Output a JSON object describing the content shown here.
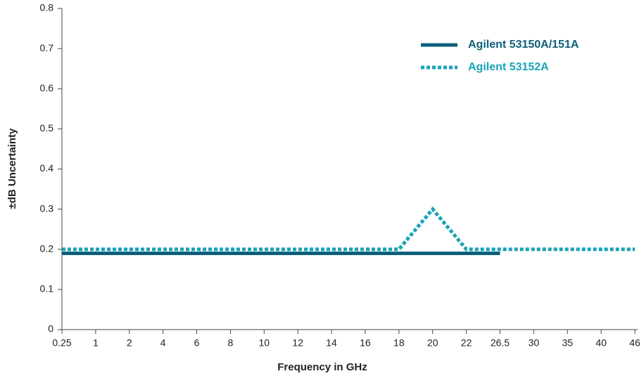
{
  "chart_data": {
    "type": "line",
    "x_label": "Frequency in GHz",
    "y_label": "±dB Uncertainty",
    "categories": [
      "0.25",
      "1",
      "2",
      "4",
      "6",
      "8",
      "10",
      "12",
      "14",
      "16",
      "18",
      "20",
      "22",
      "26.5",
      "30",
      "35",
      "40",
      "46"
    ],
    "series": [
      {
        "name": "Agilent 53150A/151A",
        "color": "#0e5f7a",
        "dashed": false,
        "values": [
          0.19,
          0.19,
          0.19,
          0.19,
          0.19,
          0.19,
          0.19,
          0.19,
          0.19,
          0.19,
          0.19,
          0.19,
          0.19,
          0.19,
          null,
          null,
          null,
          null
        ]
      },
      {
        "name": "Agilent 53152A",
        "color": "#1aa3b8",
        "dashed": true,
        "values": [
          0.2,
          0.2,
          0.2,
          0.2,
          0.2,
          0.2,
          0.2,
          0.2,
          0.2,
          0.2,
          0.2,
          0.3,
          0.2,
          0.2,
          0.2,
          0.2,
          0.2,
          0.2
        ]
      }
    ],
    "ylim": [
      0,
      0.8
    ],
    "yticks": [
      0,
      0.1,
      0.2,
      0.3,
      0.4,
      0.5,
      0.6,
      0.7,
      0.8
    ],
    "legend": "upper right"
  }
}
